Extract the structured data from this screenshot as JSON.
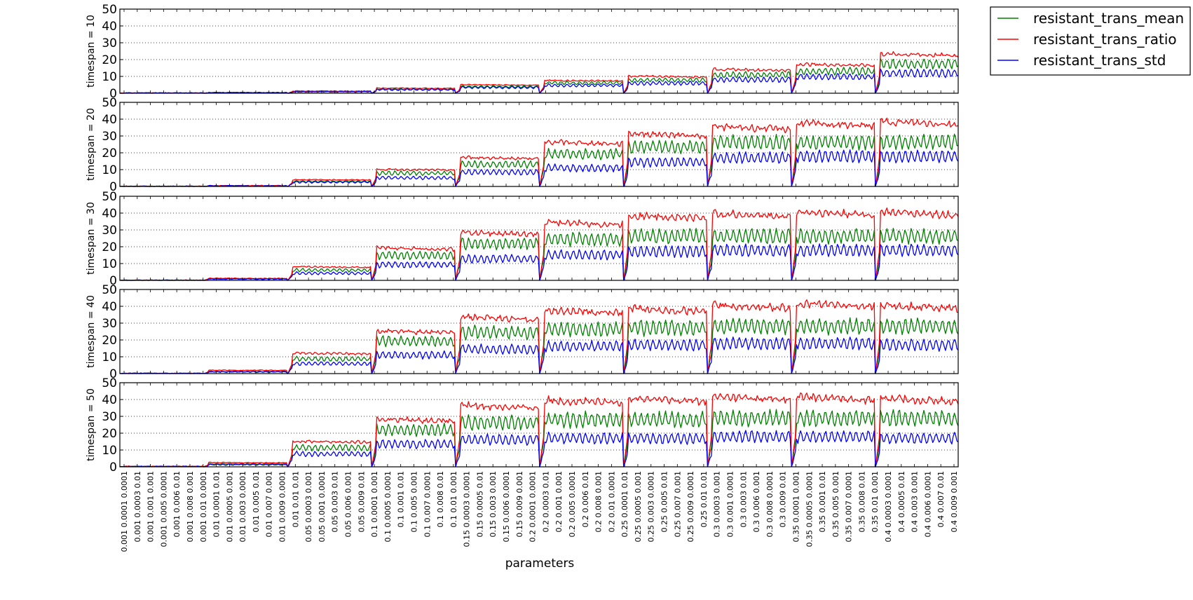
{
  "chart_data": {
    "type": "line",
    "xlabel": "parameters",
    "ylim": [
      0,
      50
    ],
    "yticks": [
      0,
      10,
      20,
      30,
      40,
      50
    ],
    "grid": "horizontal dotted",
    "legend_placement": "outside top-right",
    "series_names": [
      "resistant_trans_mean",
      "resistant_trans_ratio",
      "resistant_trans_std"
    ],
    "series_colors": [
      "#008000",
      "#ff0000",
      "#0000ff"
    ],
    "x_tick_labels": [
      "0.001 0.0001 0.0001",
      "0.001 0.0003 0.01",
      "0.001 0.001 0.001",
      "0.001 0.005 0.0001",
      "0.001 0.006 0.01",
      "0.001 0.008 0.001",
      "0.001 0.01 0.0001",
      "0.01 0.0001 0.01",
      "0.01 0.0005 0.001",
      "0.01 0.003 0.0001",
      "0.01 0.005 0.01",
      "0.01 0.007 0.001",
      "0.01 0.009 0.0001",
      "0.01 0.01 0.01",
      "0.05 0.0003 0.001",
      "0.05 0.001 0.0001",
      "0.05 0.003 0.01",
      "0.05 0.006 0.001",
      "0.05 0.009 0.01",
      "0.1 0.0001 0.001",
      "0.1 0.0005 0.0001",
      "0.1 0.001 0.01",
      "0.1 0.005 0.001",
      "0.1 0.007 0.0001",
      "0.1 0.008 0.01",
      "0.1 0.01 0.001",
      "0.15 0.0003 0.0001",
      "0.15 0.0005 0.01",
      "0.15 0.003 0.001",
      "0.15 0.006 0.0001",
      "0.15 0.009 0.001",
      "0.2 0.0001 0.0001",
      "0.2 0.0003 0.01",
      "0.2 0.001 0.001",
      "0.2 0.005 0.0001",
      "0.2 0.006 0.01",
      "0.2 0.008 0.001",
      "0.2 0.01 0.0001",
      "0.25 0.0001 0.01",
      "0.25 0.0005 0.001",
      "0.25 0.003 0.0001",
      "0.25 0.005 0.01",
      "0.25 0.007 0.001",
      "0.25 0.009 0.0001",
      "0.25 0.01 0.01",
      "0.3 0.0003 0.001",
      "0.3 0.001 0.0001",
      "0.3 0.003 0.01",
      "0.3 0.006 0.001",
      "0.3 0.008 0.0001",
      "0.3 0.009 0.01",
      "0.35 0.0001 0.001",
      "0.35 0.0005 0.0001",
      "0.35 0.001 0.01",
      "0.35 0.005 0.001",
      "0.35 0.007 0.0001",
      "0.35 0.008 0.01",
      "0.35 0.01 0.001",
      "0.4 0.0003 0.0001",
      "0.4 0.0005 0.01",
      "0.4 0.003 0.001",
      "0.4 0.006 0.0001",
      "0.4 0.007 0.01",
      "0.4 0.009 0.001"
    ],
    "groups": [
      "0.001",
      "0.01",
      "0.05",
      "0.1",
      "0.15",
      "0.2",
      "0.25",
      "0.3",
      "0.35",
      "0.4"
    ],
    "panels": [
      {
        "ylabel": "timespan = 10",
        "group_levels": {
          "resistant_trans_mean": [
            0.2,
            0.4,
            1.2,
            2.8,
            4.5,
            7.0,
            9.0,
            12.5,
            15.0,
            20.0
          ],
          "resistant_trans_ratio": [
            0.2,
            0.4,
            1.3,
            3.0,
            5.0,
            7.5,
            10.0,
            14.0,
            17.0,
            23.0
          ],
          "resistant_trans_std": [
            0.2,
            0.4,
            1.0,
            2.5,
            4.0,
            5.5,
            7.0,
            9.5,
            11.5,
            14.0
          ]
        }
      },
      {
        "ylabel": "timespan = 20",
        "group_levels": {
          "resistant_trans_mean": [
            0.1,
            0.5,
            3.5,
            9.0,
            15.0,
            22.0,
            27.0,
            30.0,
            30.0,
            30.0
          ],
          "resistant_trans_ratio": [
            0.1,
            0.5,
            4.0,
            10.0,
            17.0,
            26.0,
            31.0,
            35.0,
            37.0,
            38.0
          ],
          "resistant_trans_std": [
            0.1,
            0.4,
            3.0,
            6.0,
            10.0,
            13.0,
            17.0,
            20.0,
            21.0,
            21.0
          ]
        }
      },
      {
        "ylabel": "timespan = 30",
        "group_levels": {
          "resistant_trans_mean": [
            0.1,
            1.0,
            7.0,
            17.0,
            25.0,
            28.0,
            30.0,
            30.0,
            30.0,
            30.0
          ],
          "resistant_trans_ratio": [
            0.1,
            1.2,
            8.0,
            19.0,
            28.0,
            34.0,
            38.0,
            39.0,
            40.0,
            40.0
          ],
          "resistant_trans_std": [
            0.1,
            0.9,
            5.0,
            11.0,
            15.0,
            18.0,
            20.0,
            21.0,
            21.0,
            21.0
          ]
        }
      },
      {
        "ylabel": "timespan = 40",
        "group_levels": {
          "resistant_trans_mean": [
            0.2,
            1.5,
            10.0,
            22.0,
            28.0,
            30.0,
            31.0,
            32.0,
            32.0,
            32.0
          ],
          "resistant_trans_ratio": [
            0.2,
            2.0,
            12.0,
            25.0,
            33.0,
            37.0,
            38.0,
            40.0,
            41.0,
            40.0
          ],
          "resistant_trans_std": [
            0.2,
            1.2,
            7.0,
            13.0,
            17.0,
            19.0,
            20.0,
            21.0,
            21.0,
            20.0
          ]
        }
      },
      {
        "ylabel": "timespan = 50",
        "group_levels": {
          "resistant_trans_mean": [
            0.3,
            2.0,
            13.0,
            25.0,
            30.0,
            32.0,
            32.0,
            33.0,
            33.0,
            33.0
          ],
          "resistant_trans_ratio": [
            0.3,
            2.5,
            15.0,
            28.0,
            36.0,
            39.0,
            40.0,
            41.0,
            41.0,
            40.0
          ],
          "resistant_trans_std": [
            0.3,
            1.5,
            9.0,
            16.0,
            19.0,
            20.0,
            20.0,
            21.0,
            21.0,
            20.0
          ]
        }
      }
    ]
  }
}
